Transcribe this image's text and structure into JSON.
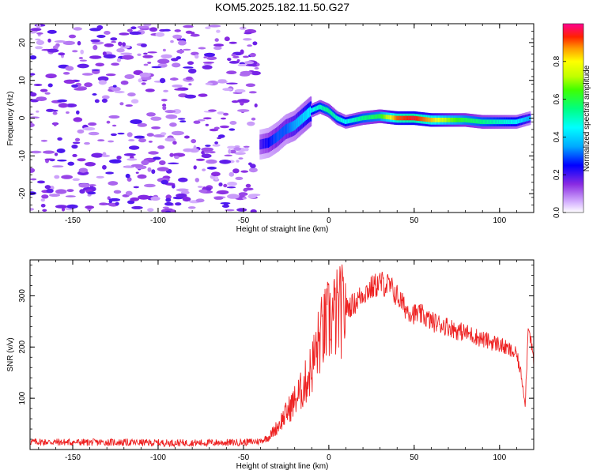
{
  "title": "KOM5.2025.182.11.50.G27",
  "chart_data": [
    {
      "type": "heatmap",
      "xlabel": "Height of straight line (km)",
      "ylabel": "Frequency (Hz)",
      "xlim": [
        -175,
        120
      ],
      "ylim": [
        -25,
        25
      ],
      "x_ticks": [
        -150,
        -100,
        -50,
        0,
        50,
        100
      ],
      "y_ticks": [
        -20,
        -10,
        0,
        10,
        20
      ],
      "colorbar": {
        "label": "Normalized spectral amplitude",
        "range": [
          0,
          1
        ],
        "ticks": [
          0.0,
          0.2,
          0.4,
          0.6,
          0.8
        ]
      },
      "signal_trace": {
        "x": [
          -40,
          -35,
          -30,
          -25,
          -20,
          -15,
          -10,
          -5,
          0,
          5,
          10,
          20,
          30,
          40,
          50,
          60,
          70,
          80,
          90,
          100,
          110,
          118
        ],
        "y": [
          -7,
          -6.5,
          -5,
          -3,
          -2,
          0,
          2,
          3,
          2,
          0,
          -1,
          0,
          0.5,
          0,
          0,
          -0.5,
          -0.5,
          -0.5,
          -1,
          -1,
          -1,
          0
        ],
        "amplitude": [
          0.2,
          0.25,
          0.3,
          0.3,
          0.35,
          0.4,
          0.45,
          0.5,
          0.55,
          0.5,
          0.45,
          0.55,
          0.6,
          0.9,
          0.95,
          0.85,
          0.7,
          0.6,
          0.55,
          0.5,
          0.45,
          0.35
        ]
      },
      "noise_region": {
        "x_range": [
          -175,
          -42
        ],
        "amplitude": [
          0.05,
          0.2
        ]
      }
    },
    {
      "type": "line",
      "xlabel": "Height of straight line (km)",
      "ylabel": "SNR (v/v)",
      "xlim": [
        -175,
        120
      ],
      "ylim": [
        0,
        370
      ],
      "x_ticks": [
        -150,
        -100,
        -50,
        0,
        50,
        100
      ],
      "y_ticks": [
        100,
        200,
        300
      ],
      "color": "#ee2222",
      "series": [
        {
          "x": [
            -175,
            -150,
            -125,
            -100,
            -75,
            -50,
            -40,
            -35,
            -30,
            -25,
            -20,
            -15,
            -10,
            -5,
            0,
            5,
            10,
            15,
            20,
            25,
            30,
            35,
            40,
            45,
            50,
            55,
            60,
            65,
            70,
            75,
            80,
            85,
            90,
            95,
            100,
            105,
            110,
            113,
            115,
            117,
            120
          ],
          "values": [
            15,
            14,
            14,
            13,
            13,
            14,
            16,
            25,
            45,
            70,
            95,
            120,
            160,
            220,
            250,
            265,
            275,
            285,
            305,
            315,
            325,
            320,
            300,
            275,
            265,
            262,
            250,
            245,
            240,
            232,
            228,
            222,
            215,
            210,
            205,
            195,
            185,
            140,
            90,
            250,
            170
          ]
        }
      ]
    }
  ]
}
